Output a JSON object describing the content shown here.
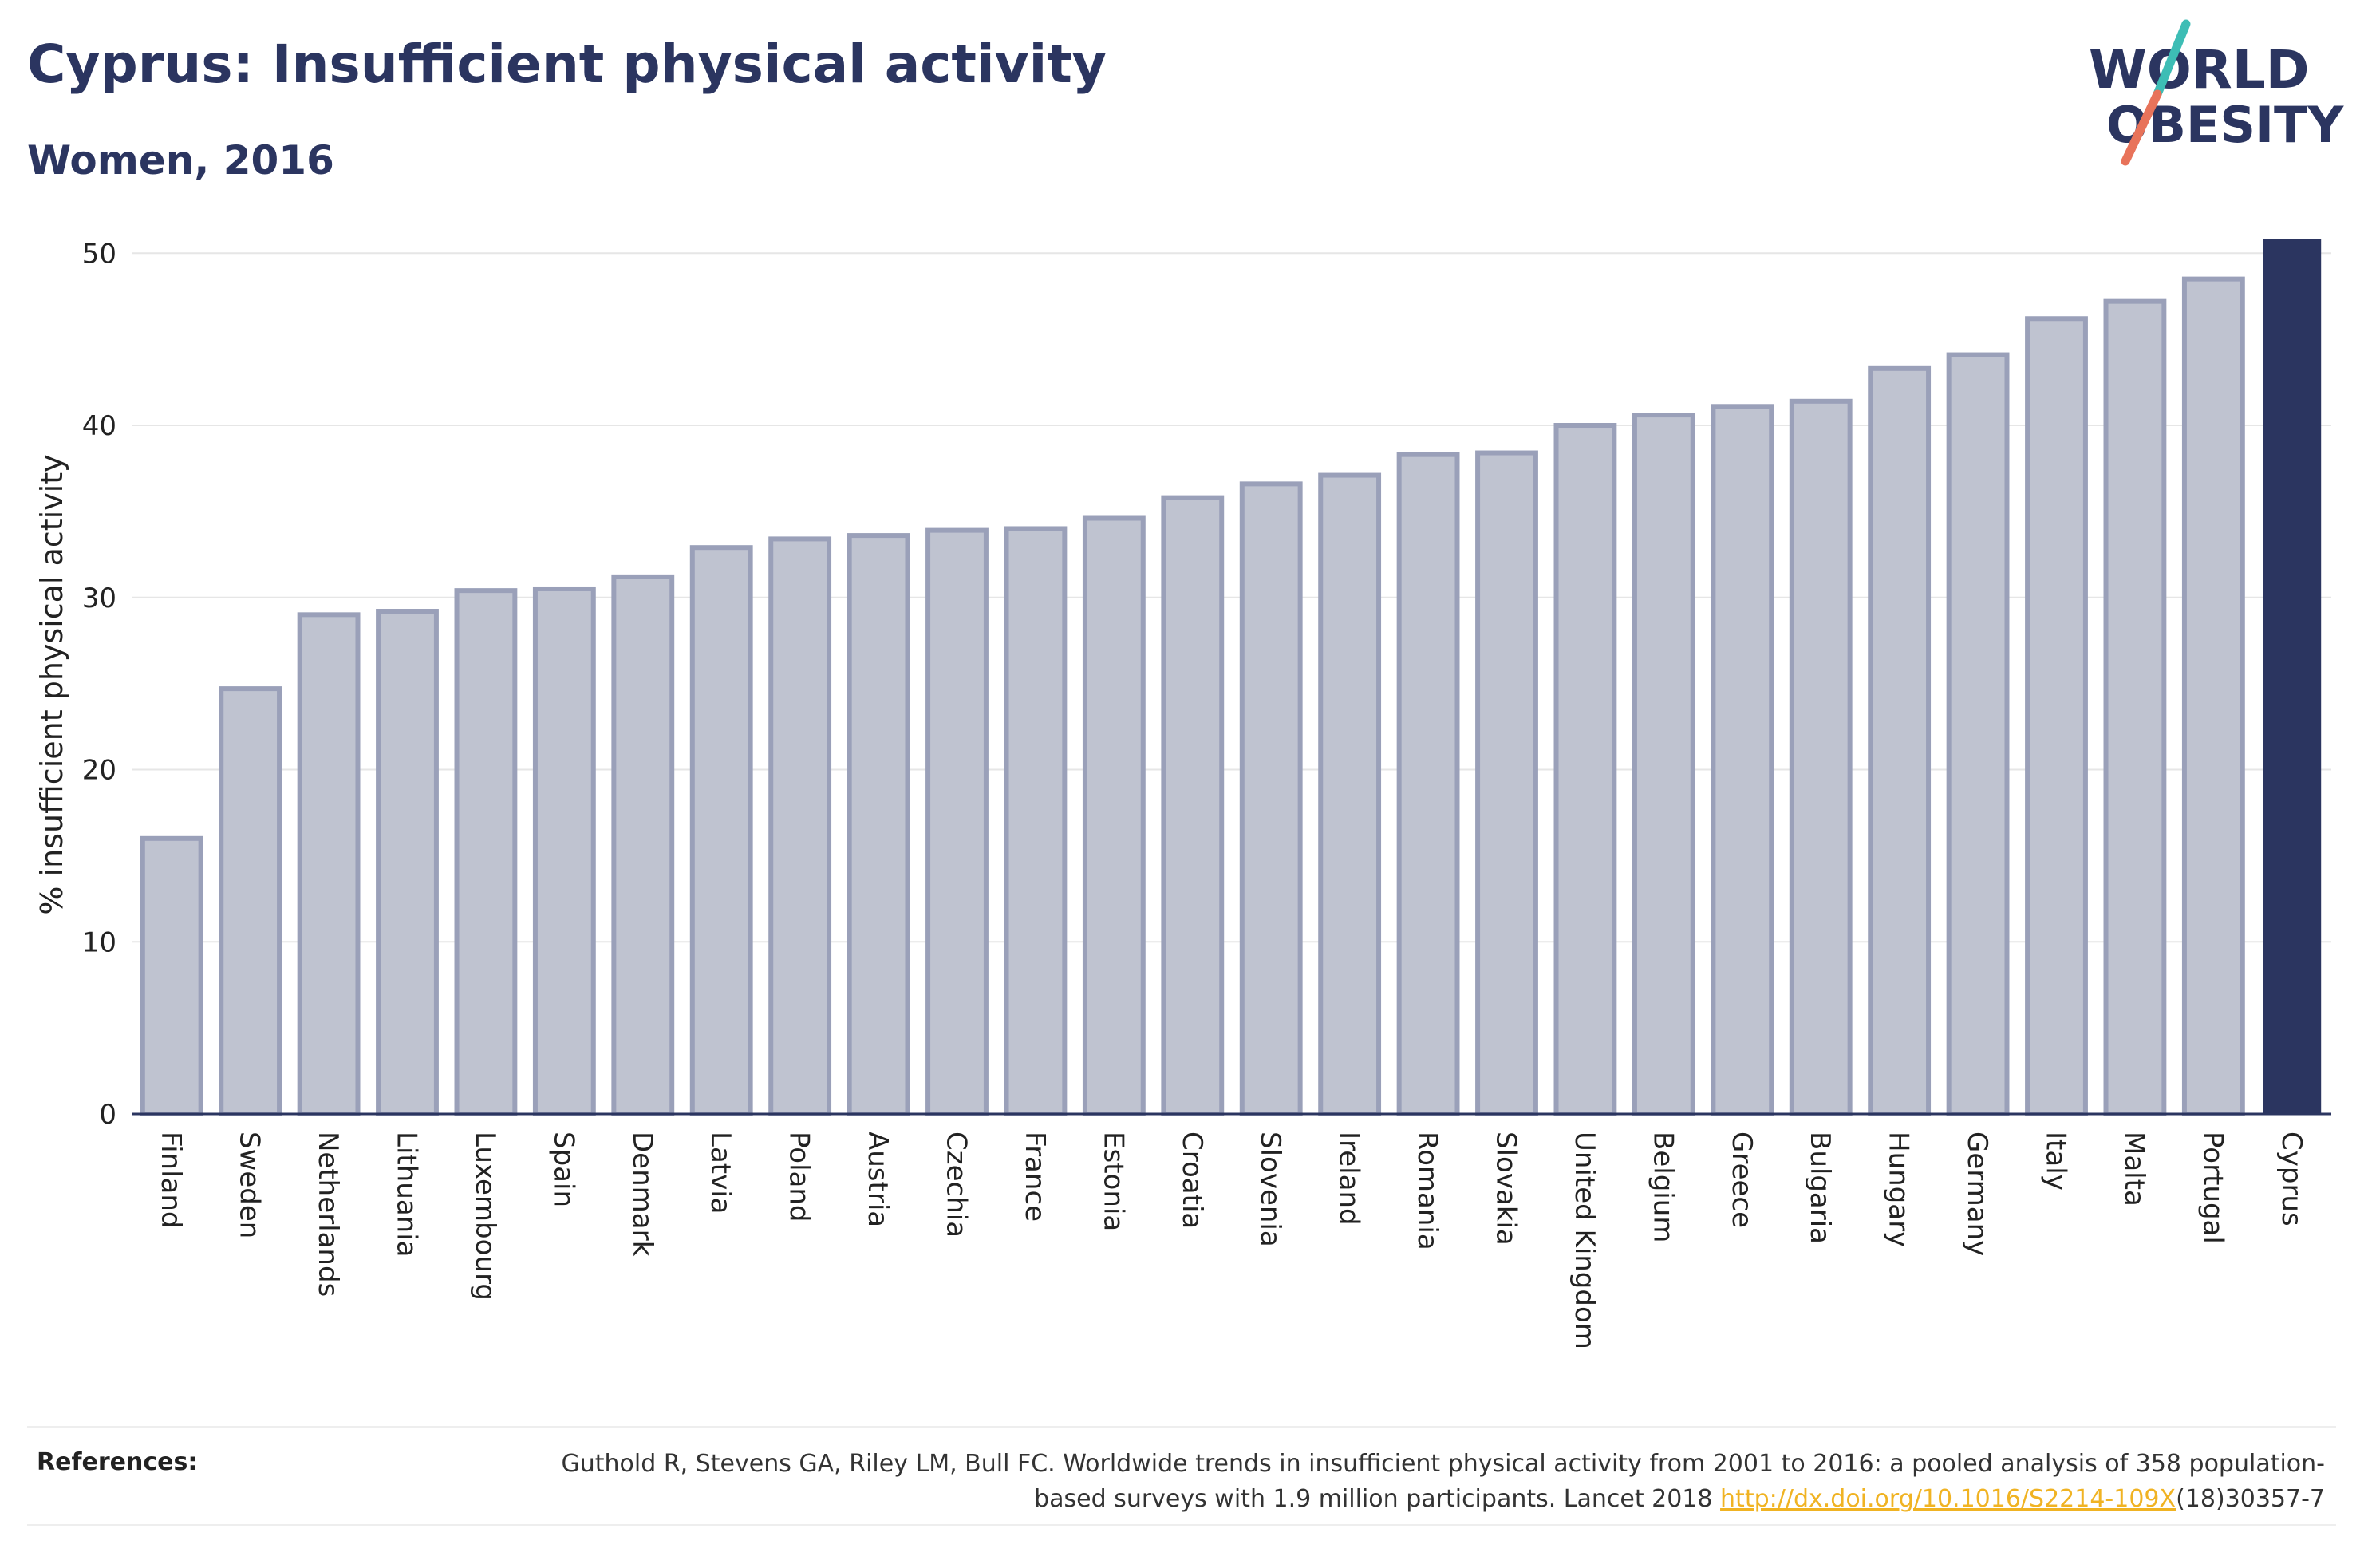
{
  "header": {
    "title": "Cyprus: Insufficient physical activity",
    "subtitle": "Women, 2016"
  },
  "logo": {
    "line1": "WORLD",
    "line2": "OBESITY",
    "text_color": "#2b3560",
    "slash_top_color": "#3dbdb5",
    "slash_bottom_color": "#e8735a"
  },
  "chart_data": {
    "type": "bar",
    "title": "Cyprus: Insufficient physical activity",
    "subtitle": "Women, 2016",
    "xlabel": "",
    "ylabel": "% insufficient physical activity",
    "ylim": [
      0,
      50.8
    ],
    "yticks": [
      0,
      10,
      20,
      30,
      40,
      50
    ],
    "grid": true,
    "highlight": "Cyprus",
    "colors": {
      "bar_fill": "#bfc3d0",
      "bar_edge": "#9aa0b9",
      "highlight": "#2b3560",
      "grid": "#e6e6e6",
      "axis": "#2b3560"
    },
    "categories": [
      "Finland",
      "Sweden",
      "Netherlands",
      "Lithuania",
      "Luxembourg",
      "Spain",
      "Denmark",
      "Latvia",
      "Poland",
      "Austria",
      "Czechia",
      "France",
      "Estonia",
      "Croatia",
      "Slovenia",
      "Ireland",
      "Romania",
      "Slovakia",
      "United Kingdom",
      "Belgium",
      "Greece",
      "Bulgaria",
      "Hungary",
      "Germany",
      "Italy",
      "Malta",
      "Portugal",
      "Cyprus"
    ],
    "values": [
      16.0,
      24.7,
      29.0,
      29.2,
      30.4,
      30.5,
      31.2,
      32.9,
      33.4,
      33.6,
      33.9,
      34.0,
      34.6,
      35.8,
      36.6,
      37.1,
      38.3,
      38.4,
      40.0,
      40.6,
      41.1,
      41.4,
      43.3,
      44.1,
      46.2,
      47.2,
      48.5,
      50.8
    ]
  },
  "references": {
    "label": "References:",
    "text_before": "Guthold R, Stevens GA, Riley LM, Bull FC. Worldwide trends in insufficient physical activity from 2001 to 2016: a pooled analysis of 358 population-based surveys with 1.9 million participants. Lancet 2018 ",
    "link": "http://dx.doi.org/10.1016/S2214-109X",
    "text_after": "(18)30357-7"
  }
}
